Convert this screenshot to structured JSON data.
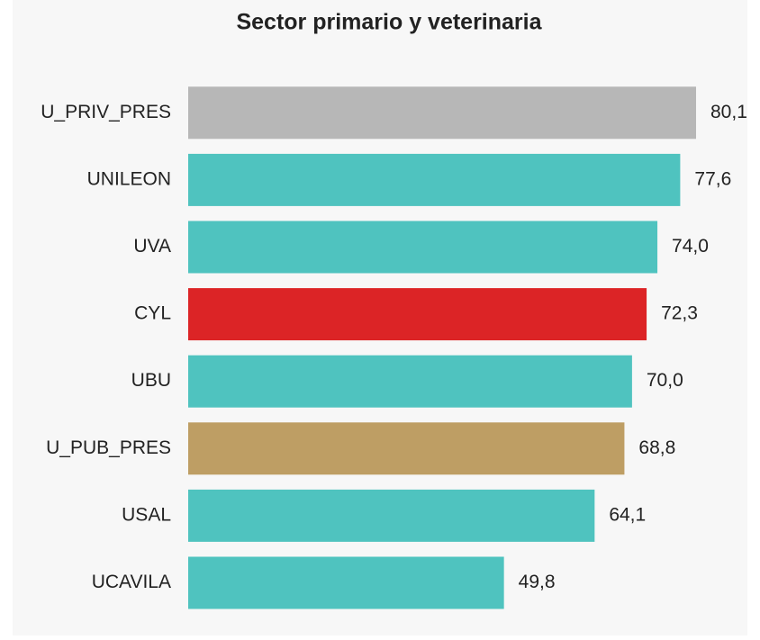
{
  "chart_data": {
    "type": "bar",
    "orientation": "horizontal",
    "title": "Sector primario y veterinaria",
    "categories": [
      "U_PRIV_PRES",
      "UNILEON",
      "UVA",
      "CYL",
      "UBU",
      "U_PUB_PRES",
      "USAL",
      "UCAVILA"
    ],
    "values": [
      80.1,
      77.6,
      74.0,
      72.3,
      70.0,
      68.8,
      64.1,
      49.8
    ],
    "value_labels": [
      "80,1",
      "77,6",
      "74,0",
      "72,3",
      "70,0",
      "68,8",
      "64,1",
      "49,8"
    ],
    "colors": [
      "#b7b7b7",
      "#4fc3bf",
      "#4fc3bf",
      "#dc2426",
      "#4fc3bf",
      "#be9e64",
      "#4fc3bf",
      "#4fc3bf"
    ]
  }
}
